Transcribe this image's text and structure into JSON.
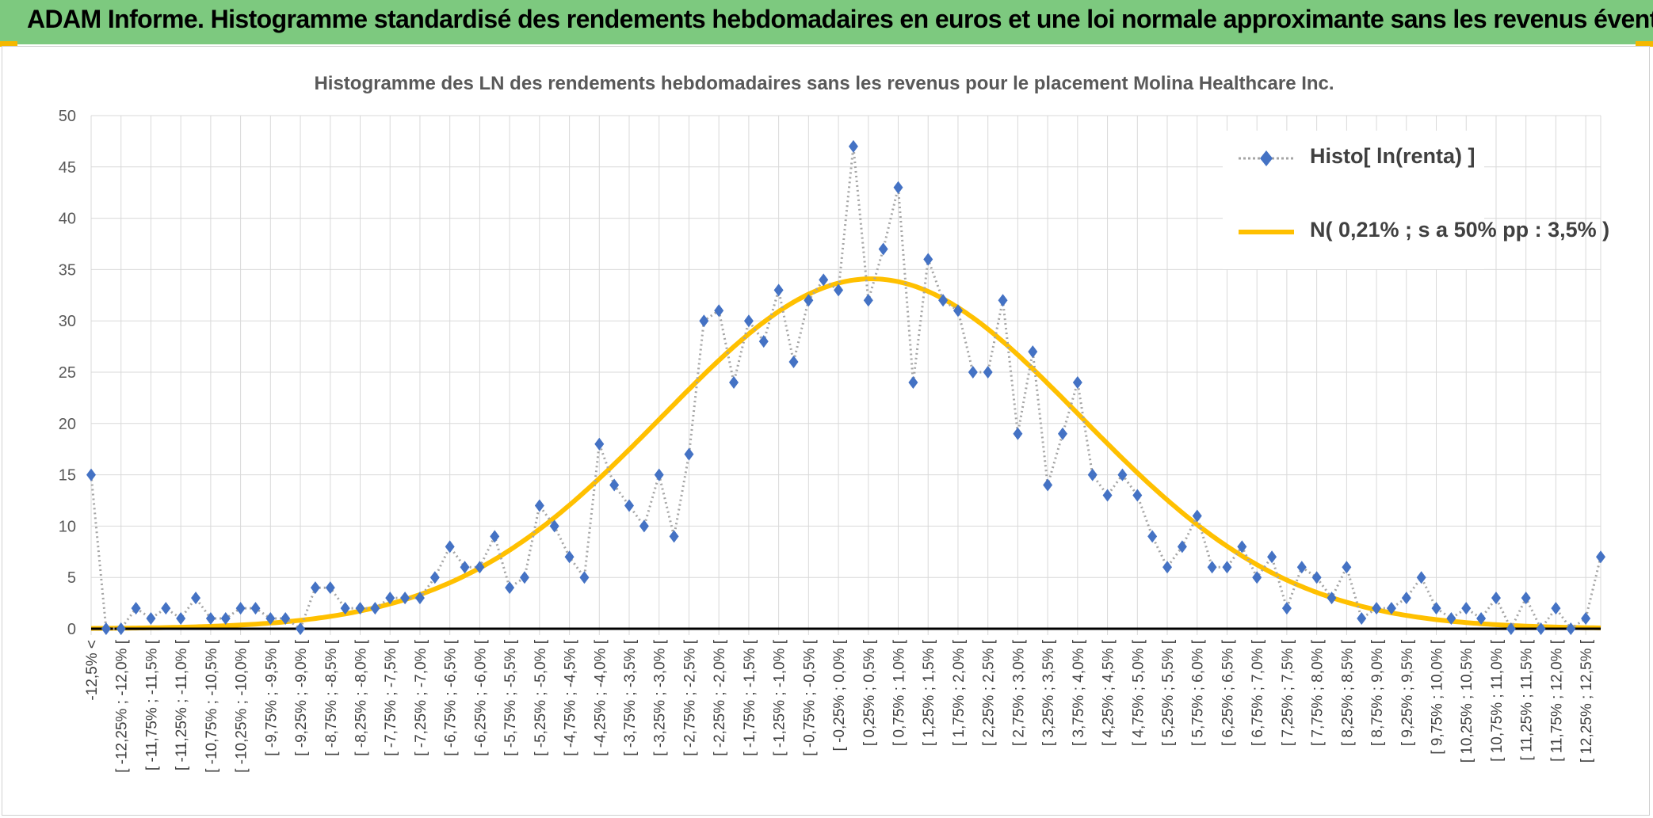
{
  "banner": {
    "title": "ADAM Informe. Histogramme standardisé des rendements hebdomadaires en euros et une loi normale approximante sans les revenus éventuels",
    "color": "#7dc97f",
    "accent_color": "#f5b800"
  },
  "chart_data": {
    "type": "line",
    "title": "Histogramme des LN des rendements hebdomadaires sans les revenus pour le placement Molina Healthcare Inc.",
    "xlabel": "",
    "ylabel": "",
    "ylim": [
      0,
      50
    ],
    "yticks": [
      0,
      5,
      10,
      15,
      20,
      25,
      30,
      35,
      40,
      45,
      50
    ],
    "grid": true,
    "legend_position": "top-right",
    "category_labels": [
      "-12,5% <",
      "[ -12,25% ; -12,0% [",
      "[ -11,75% ; -11,5% [",
      "[ -11,25% ; -11,0% [",
      "[ -10,75% ; -10,5% [",
      "[ -10,25% ; -10,0% [",
      "[ -9,75% ; -9,5% [",
      "[ -9,25% ; -9,0% [",
      "[ -8,75% ; -8,5% [",
      "[ -8,25% ; -8,0% [",
      "[ -7,75% ; -7,5% [",
      "[ -7,25% ; -7,0% [",
      "[ -6,75% ; -6,5% [",
      "[ -6,25% ; -6,0% [",
      "[ -5,75% ; -5,5% [",
      "[ -5,25% ; -5,0% [",
      "[ -4,75% ; -4,5% [",
      "[ -4,25% ; -4,0% [",
      "[ -3,75% ; -3,5% [",
      "[ -3,25% ; -3,0% [",
      "[ -2,75% ; -2,5% [",
      "[ -2,25% ; -2,0% [",
      "[ -1,75% ; -1,5% [",
      "[ -1,25% ; -1,0% [",
      "[ -0,75% ; -0,5% [",
      "[ -0,25% ; 0,0% [",
      "[ 0,25% ; 0,5% [",
      "[ 0,75% ; 1,0% [",
      "[ 1,25% ; 1,5% [",
      "[ 1,75% ; 2,0% [",
      "[ 2,25% ; 2,5% [",
      "[ 2,75% ; 3,0% [",
      "[ 3,25% ; 3,5% [",
      "[ 3,75% ; 4,0% [",
      "[ 4,25% ; 4,5% [",
      "[ 4,75% ; 5,0% [",
      "[ 5,25% ; 5,5% [",
      "[ 5,75% ; 6,0% [",
      "[ 6,25% ; 6,5% [",
      "[ 6,75% ; 7,0% [",
      "[ 7,25% ; 7,5% [",
      "[ 7,75% ; 8,0% [",
      "[ 8,25% ; 8,5% [",
      "[ 8,75% ; 9,0% [",
      "[ 9,25% ; 9,5% [",
      "[ 9,75% ; 10,0% [",
      "[ 10,25% ; 10,5% [",
      "[ 10,75% ; 11,0% [",
      "[ 11,25% ; 11,5% [",
      "[ 11,75% ; 12,0% [",
      "[ 12,25% ; 12,5% ["
    ],
    "series": [
      {
        "name": "Histo[ ln(renta) ]",
        "style": "dotted-line-diamond-markers",
        "color": "#4472c4",
        "line_color": "#a5a5a5",
        "values": [
          15,
          0,
          0,
          2,
          1,
          2,
          1,
          3,
          1,
          1,
          2,
          2,
          1,
          1,
          0,
          4,
          4,
          2,
          2,
          2,
          3,
          3,
          3,
          5,
          8,
          6,
          6,
          9,
          4,
          5,
          12,
          10,
          7,
          5,
          18,
          14,
          12,
          10,
          15,
          9,
          17,
          30,
          31,
          24,
          30,
          28,
          33,
          26,
          32,
          34,
          33,
          47,
          32,
          37,
          43,
          24,
          36,
          32,
          31,
          25,
          25,
          32,
          19,
          27,
          14,
          19,
          24,
          15,
          13,
          15,
          13,
          9,
          6,
          8,
          11,
          6,
          6,
          8,
          5,
          7,
          2,
          6,
          5,
          3,
          6,
          1,
          2,
          2,
          3,
          5,
          2,
          1,
          2,
          1,
          3,
          0,
          3,
          0,
          2,
          0,
          1,
          7
        ]
      },
      {
        "name": "N( 0,21% ; s a 50% pp : 3,5% )",
        "style": "smooth-line",
        "color": "#ffc000",
        "distribution": {
          "type": "normal",
          "mean_index": 52.2,
          "sd_index": 14.0,
          "peak": 34.1
        }
      }
    ]
  }
}
